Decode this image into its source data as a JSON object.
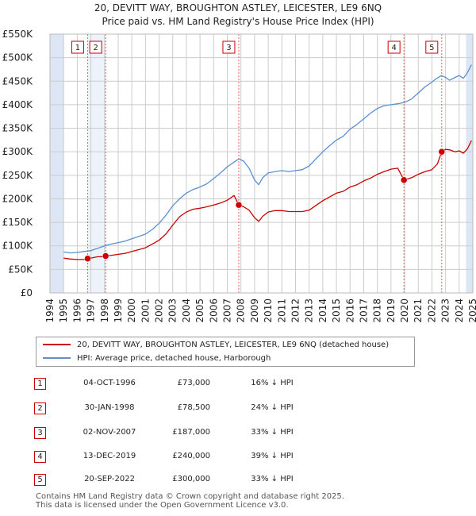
{
  "title_line1": "20, DEVITT WAY, BROUGHTON ASTLEY, LEICESTER, LE9 6NQ",
  "title_line2": "Price paid vs. HM Land Registry's House Price Index (HPI)",
  "colors": {
    "property": "#cc0000",
    "hpi": "#5b8fce",
    "band": "#dde6f5",
    "vline": "#e06060",
    "grid": "#cccccc"
  },
  "legend": {
    "property_label": "20, DEVITT WAY, BROUGHTON ASTLEY, LEICESTER, LE9 6NQ (detached house)",
    "hpi_label": "HPI: Average price, detached house, Harborough"
  },
  "transactions": [
    {
      "num": "1",
      "date": "04-OCT-1996",
      "price": "£73,000",
      "hpi_diff": "16% ↓ HPI"
    },
    {
      "num": "2",
      "date": "30-JAN-1998",
      "price": "£78,500",
      "hpi_diff": "24% ↓ HPI"
    },
    {
      "num": "3",
      "date": "02-NOV-2007",
      "price": "£187,000",
      "hpi_diff": "33% ↓ HPI"
    },
    {
      "num": "4",
      "date": "13-DEC-2019",
      "price": "£240,000",
      "hpi_diff": "39% ↓ HPI"
    },
    {
      "num": "5",
      "date": "20-SEP-2022",
      "price": "£300,000",
      "hpi_diff": "33% ↓ HPI"
    }
  ],
  "footer_line1": "Contains HM Land Registry data © Crown copyright and database right 2025.",
  "footer_line2": "This data is licensed under the Open Government Licence v3.0.",
  "chart_data": {
    "type": "line",
    "title": "Price paid vs. HM Land Registry's House Price Index (HPI)",
    "xlabel": "",
    "ylabel": "",
    "xlim": [
      1994,
      2025
    ],
    "ylim": [
      0,
      550000
    ],
    "x_ticks": [
      1994,
      1995,
      1996,
      1997,
      1998,
      1999,
      2000,
      2001,
      2002,
      2003,
      2004,
      2005,
      2006,
      2007,
      2008,
      2009,
      2010,
      2011,
      2012,
      2013,
      2014,
      2015,
      2016,
      2017,
      2018,
      2019,
      2020,
      2021,
      2022,
      2023,
      2024,
      2025
    ],
    "y_ticks": [
      {
        "value": 0,
        "label": "£0"
      },
      {
        "value": 50000,
        "label": "£50K"
      },
      {
        "value": 100000,
        "label": "£100K"
      },
      {
        "value": 150000,
        "label": "£150K"
      },
      {
        "value": 200000,
        "label": "£200K"
      },
      {
        "value": 250000,
        "label": "£250K"
      },
      {
        "value": 300000,
        "label": "£300K"
      },
      {
        "value": 350000,
        "label": "£350K"
      },
      {
        "value": 400000,
        "label": "£400K"
      },
      {
        "value": 450000,
        "label": "£450K"
      },
      {
        "value": 500000,
        "label": "£500K"
      },
      {
        "value": 550000,
        "label": "£550K"
      }
    ],
    "shaded_bands": [
      [
        1994,
        1995
      ],
      [
        2024.5,
        2025
      ]
    ],
    "sales": [
      {
        "num": "1",
        "x": 1996.76,
        "y": 73000
      },
      {
        "num": "2",
        "x": 1998.08,
        "y": 78500
      },
      {
        "num": "3",
        "x": 2007.84,
        "y": 187000
      },
      {
        "num": "4",
        "x": 2019.95,
        "y": 240000
      },
      {
        "num": "5",
        "x": 2022.72,
        "y": 300000
      }
    ],
    "series": [
      {
        "name": "HPI: Average price, detached house, Harborough",
        "x": [
          1995,
          1995.5,
          1996,
          1996.5,
          1997,
          1997.5,
          1998,
          1998.5,
          1999,
          1999.5,
          2000,
          2000.5,
          2001,
          2001.5,
          2002,
          2002.5,
          2003,
          2003.5,
          2004,
          2004.5,
          2005,
          2005.5,
          2006,
          2006.5,
          2007,
          2007.5,
          2007.85,
          2008.2,
          2008.6,
          2009,
          2009.3,
          2009.6,
          2010,
          2010.5,
          2011,
          2011.5,
          2012,
          2012.5,
          2013,
          2013.5,
          2014,
          2014.5,
          2015,
          2015.5,
          2016,
          2016.5,
          2017,
          2017.5,
          2018,
          2018.5,
          2019,
          2019.5,
          2020,
          2020.5,
          2021,
          2021.5,
          2022,
          2022.3,
          2022.7,
          2023,
          2023.3,
          2023.7,
          2024,
          2024.3,
          2024.6,
          2024.9
        ],
        "values": [
          87000,
          85000,
          86000,
          88000,
          90000,
          95000,
          100000,
          104000,
          107000,
          110000,
          115000,
          120000,
          125000,
          135000,
          148000,
          165000,
          185000,
          200000,
          212000,
          220000,
          225000,
          232000,
          243000,
          255000,
          268000,
          278000,
          285000,
          280000,
          265000,
          240000,
          230000,
          245000,
          255000,
          258000,
          260000,
          258000,
          260000,
          262000,
          270000,
          285000,
          300000,
          313000,
          325000,
          333000,
          348000,
          358000,
          370000,
          382000,
          392000,
          398000,
          400000,
          402000,
          405000,
          412000,
          425000,
          438000,
          448000,
          455000,
          462000,
          458000,
          452000,
          458000,
          462000,
          456000,
          468000,
          485000
        ]
      },
      {
        "name": "20, DEVITT WAY, BROUGHTON ASTLEY, LEICESTER, LE9 6NQ (detached house)",
        "x": [
          1995,
          1995.5,
          1996,
          1996.5,
          1996.76,
          1997,
          1997.5,
          1998,
          1998.08,
          1998.5,
          1999,
          1999.5,
          2000,
          2000.5,
          2001,
          2001.5,
          2002,
          2002.5,
          2003,
          2003.5,
          2004,
          2004.5,
          2005,
          2005.5,
          2006,
          2006.5,
          2007,
          2007.5,
          2007.84,
          2008.2,
          2008.6,
          2009,
          2009.3,
          2009.6,
          2010,
          2010.5,
          2011,
          2011.5,
          2012,
          2012.5,
          2013,
          2013.5,
          2014,
          2014.5,
          2015,
          2015.5,
          2016,
          2016.5,
          2017,
          2017.5,
          2018,
          2018.5,
          2019,
          2019.5,
          2019.95,
          2020.3,
          2020.6,
          2021,
          2021.5,
          2022,
          2022.4,
          2022.72,
          2023,
          2023.3,
          2023.7,
          2024,
          2024.3,
          2024.6,
          2024.9
        ],
        "values": [
          74000,
          72000,
          71000,
          71000,
          73000,
          74000,
          77000,
          77000,
          78500,
          80000,
          82000,
          84000,
          88000,
          92000,
          96000,
          104000,
          112000,
          125000,
          144000,
          162000,
          172000,
          178000,
          180000,
          183000,
          187000,
          191000,
          197000,
          207000,
          187000,
          183000,
          176000,
          160000,
          152000,
          163000,
          172000,
          175000,
          175000,
          173000,
          173000,
          173000,
          176000,
          186000,
          196000,
          204000,
          212000,
          216000,
          225000,
          230000,
          238000,
          244000,
          252000,
          258000,
          263000,
          265000,
          240000,
          243000,
          246000,
          252000,
          258000,
          262000,
          274000,
          300000,
          305000,
          304000,
          300000,
          302000,
          297000,
          306000,
          324000
        ]
      }
    ]
  }
}
